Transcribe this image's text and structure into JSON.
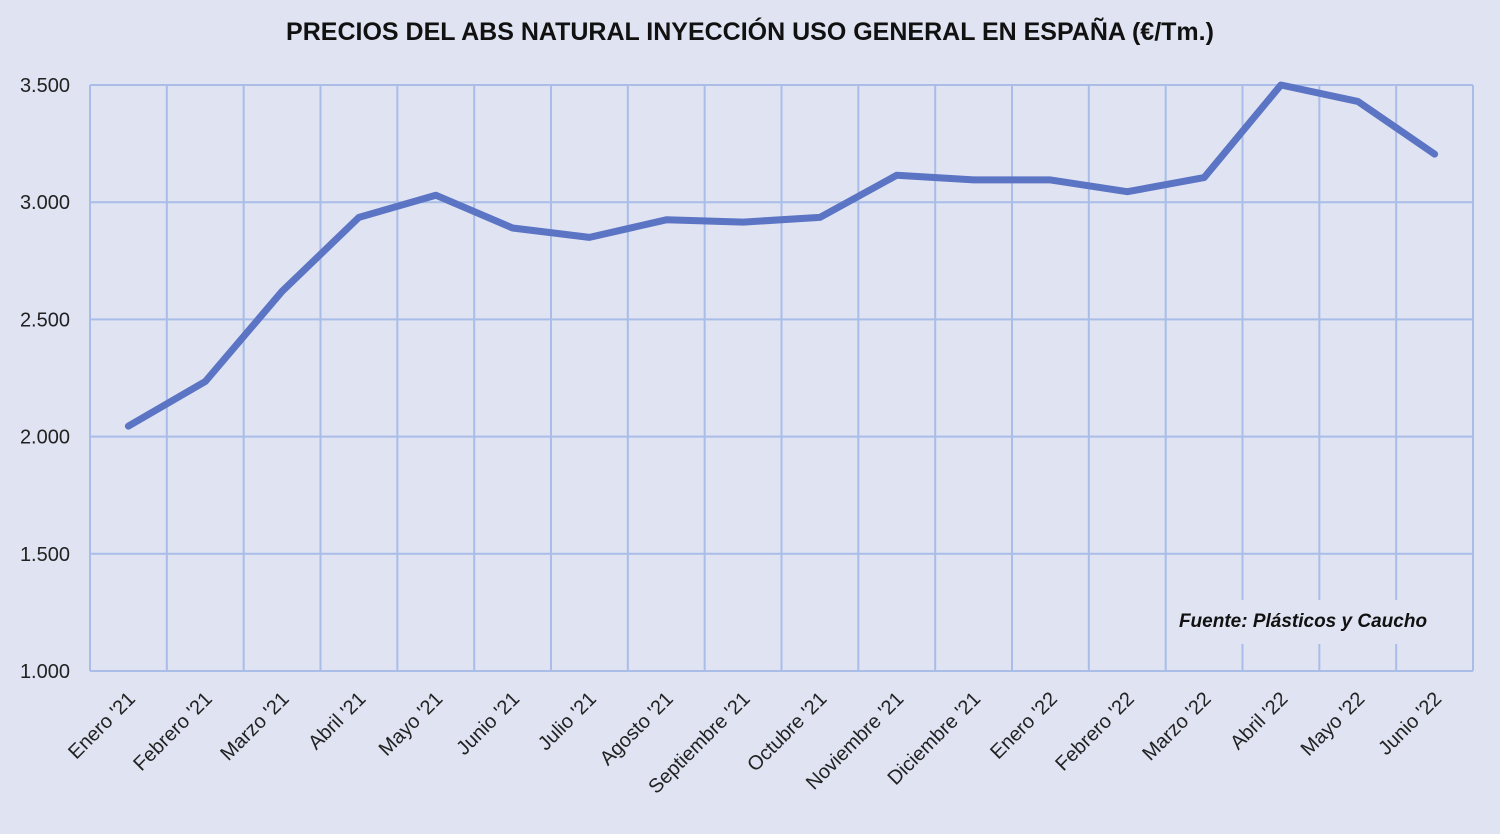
{
  "chart_data": {
    "type": "line",
    "title": "PRECIOS DEL ABS NATURAL INYECCIÓN  USO GENERAL EN ESPAÑA (€/Tm.)",
    "xlabel": "",
    "ylabel": "",
    "categories": [
      "Enero '21",
      "Febrero '21",
      "Marzo '21",
      "Abril '21",
      "Mayo '21",
      "Junio '21",
      "Julio '21",
      "Agosto '21",
      "Septiembre '21",
      "Octubre '21",
      "Noviembre '21",
      "Diciembre '21",
      "Enero '22",
      "Febrero '22",
      "Marzo '22",
      "Abril '22",
      "Mayo '22",
      "Junio '22"
    ],
    "series": [
      {
        "values": [
          2045,
          2235,
          2620,
          2935,
          3030,
          2890,
          2850,
          2925,
          2915,
          2935,
          3115,
          3095,
          3095,
          3045,
          3105,
          3500,
          3430,
          3205
        ]
      }
    ],
    "ylim": [
      1000,
      3500
    ],
    "yticks": [
      1000,
      1500,
      2000,
      2500,
      3000,
      3500
    ],
    "ytick_labels": [
      "1.000",
      "1.500",
      "2.000",
      "2.500",
      "3.000",
      "3.500"
    ],
    "grid": true,
    "legend": "none",
    "annotation": "Fuente: Plásticos y Caucho",
    "colors": {
      "line": "#5b74c4",
      "grid": "#a9bde8",
      "background": "#dfe3f2"
    }
  }
}
